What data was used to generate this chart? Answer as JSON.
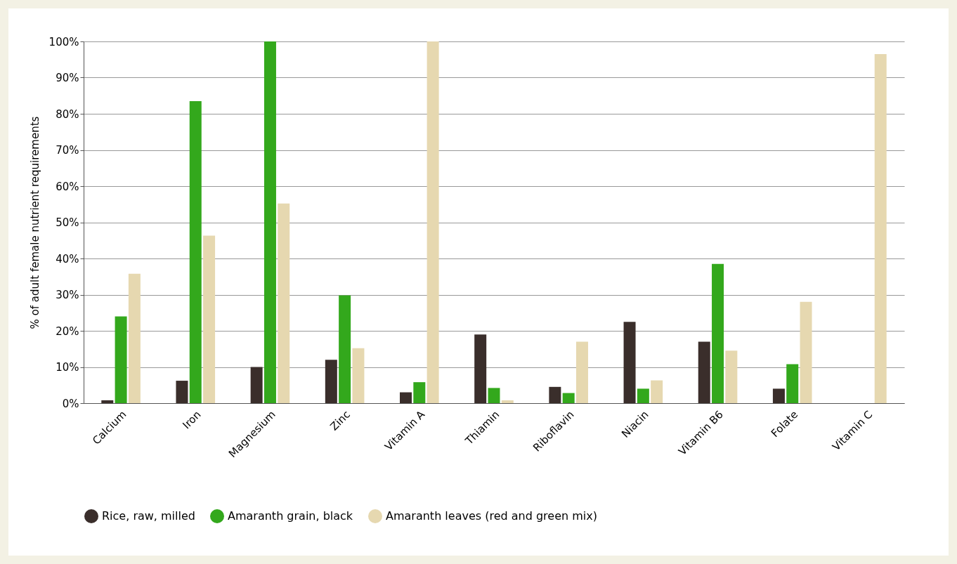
{
  "chart_data": {
    "type": "bar",
    "ylabel": "% of adult female nutrient requirements",
    "categories": [
      "Calcium",
      "Iron",
      "Magnesium",
      "Zinc",
      "Vitamin A",
      "Thiamin",
      "Riboflavin",
      "Niacin",
      "Vitamin B6",
      "Folate",
      "Vitamin C"
    ],
    "series": [
      {
        "name": "Rice, raw, milled",
        "color": "#3a2e2b",
        "values": [
          0.8,
          6.2,
          10,
          12,
          3,
          19,
          4.5,
          22.5,
          17,
          4,
          null
        ]
      },
      {
        "name": "Amaranth grain, black",
        "color": "#33a81c",
        "values": [
          24,
          83.5,
          100,
          29.8,
          5.8,
          4.2,
          2.8,
          4,
          38.5,
          10.8,
          null
        ]
      },
      {
        "name": "Amaranth leaves (red and green mix)",
        "color": "#e6d8b0",
        "values": [
          35.8,
          46.3,
          55.2,
          15.2,
          100,
          0.8,
          17,
          6.3,
          14.5,
          28,
          96.5
        ]
      }
    ],
    "ylim": [
      0,
      100
    ],
    "yticks": [
      {
        "value": 0,
        "label": "0%"
      },
      {
        "value": 10,
        "label": "10%"
      },
      {
        "value": 20,
        "label": "20%"
      },
      {
        "value": 30,
        "label": "30%"
      },
      {
        "value": 40,
        "label": "40%"
      },
      {
        "value": 50,
        "label": "50%"
      },
      {
        "value": 60,
        "label": "60%"
      },
      {
        "value": 70,
        "label": "70%"
      },
      {
        "value": 80,
        "label": "80%"
      },
      {
        "value": 90,
        "label": "90%"
      },
      {
        "value": 100,
        "label": "100%"
      }
    ],
    "grid": "y",
    "legend": "bottom"
  }
}
